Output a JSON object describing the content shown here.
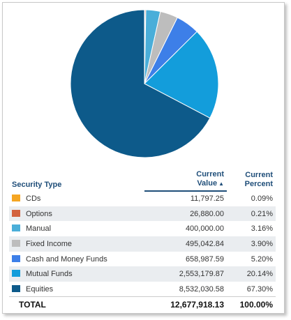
{
  "chart_data": {
    "type": "pie",
    "slices": [
      {
        "label": "CDs",
        "value": 0.09,
        "color": "#f5a623"
      },
      {
        "label": "Options",
        "value": 0.21,
        "color": "#d3633f"
      },
      {
        "label": "Manual",
        "value": 3.16,
        "color": "#4aaed9"
      },
      {
        "label": "Fixed Income",
        "value": 3.9,
        "color": "#bdbdbd"
      },
      {
        "label": "Cash and Money Funds",
        "value": 5.2,
        "color": "#3d7fe8"
      },
      {
        "label": "Mutual Funds",
        "value": 20.14,
        "color": "#139ddb"
      },
      {
        "label": "Equities",
        "value": 67.3,
        "color": "#0d5a8a"
      }
    ],
    "start": "top",
    "direction": "clockwise"
  },
  "table": {
    "headers": {
      "security_type": "Security Type",
      "current_value_line1": "Current",
      "current_value_line2": "Value",
      "current_percent_line1": "Current",
      "current_percent_line2": "Percent"
    },
    "sort_icon": "triangle-up-icon",
    "rows": [
      {
        "type": "CDs",
        "value": "11,797.25",
        "percent": "0.09%"
      },
      {
        "type": "Options",
        "value": "26,880.00",
        "percent": "0.21%"
      },
      {
        "type": "Manual",
        "value": "400,000.00",
        "percent": "3.16%"
      },
      {
        "type": "Fixed Income",
        "value": "495,042.84",
        "percent": "3.90%"
      },
      {
        "type": "Cash and Money Funds",
        "value": "658,987.59",
        "percent": "5.20%"
      },
      {
        "type": "Mutual Funds",
        "value": "2,553,179.87",
        "percent": "20.14%"
      },
      {
        "type": "Equities",
        "value": "8,532,030.58",
        "percent": "67.30%"
      }
    ],
    "total": {
      "label": "TOTAL",
      "value": "12,677,918.13",
      "percent": "100.00%"
    }
  }
}
